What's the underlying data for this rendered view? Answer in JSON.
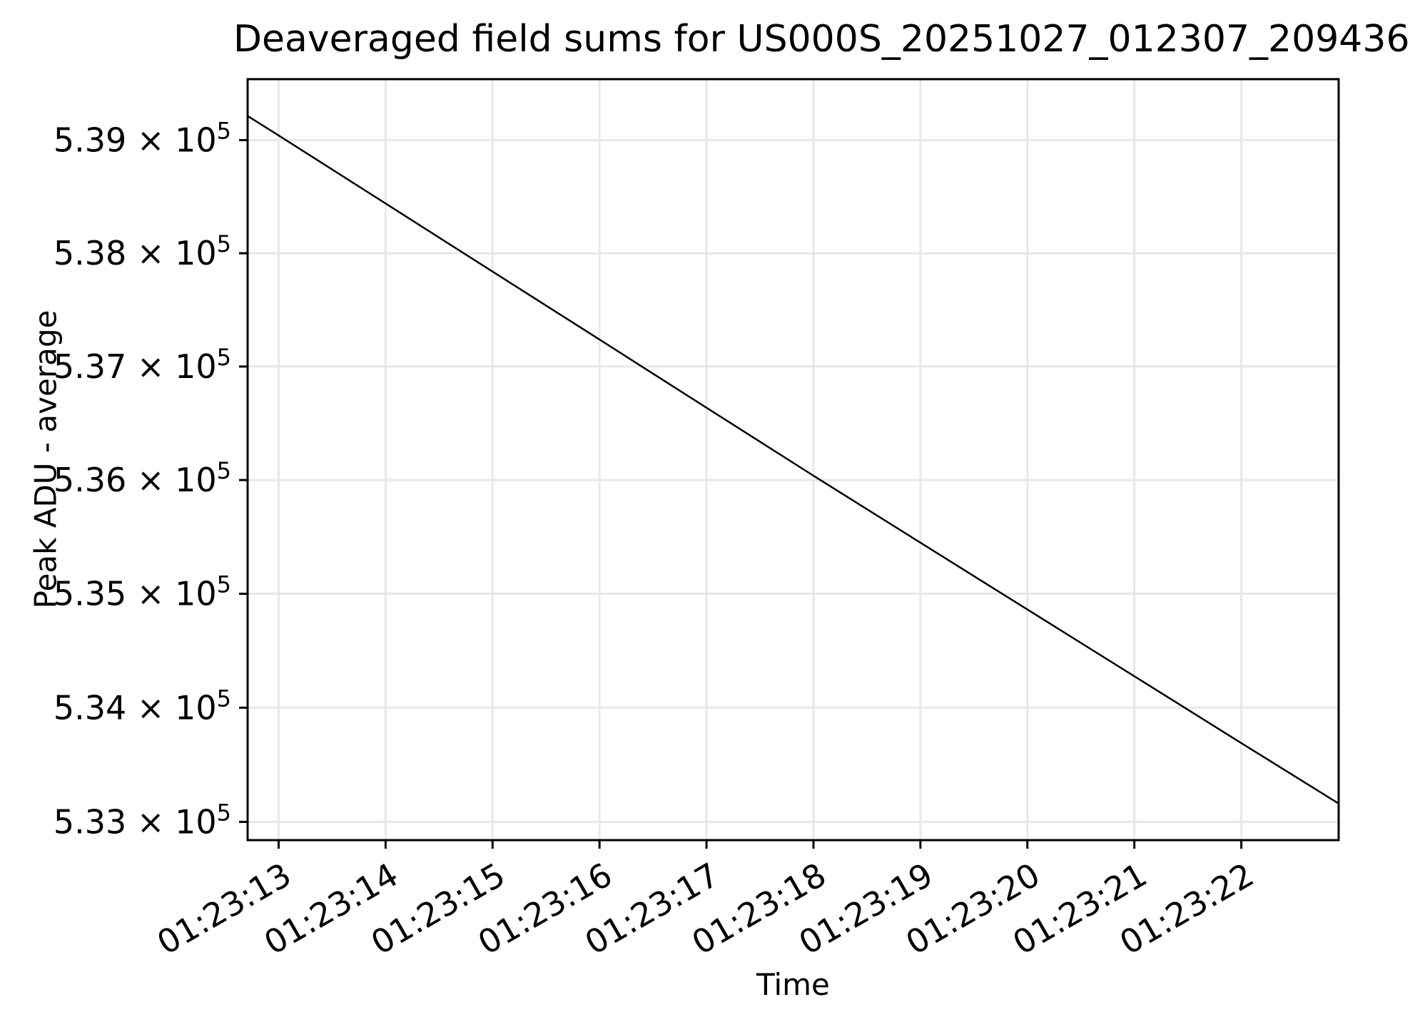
{
  "figure": {
    "background": "#ffffff",
    "text_color": "#000000"
  },
  "chart_data": {
    "type": "line",
    "title": "Deaveraged field sums for US000S_20251027_012307_209436",
    "xlabel": "Time",
    "ylabel": "Peak ADU - average",
    "grid": true,
    "legend": "none",
    "grid_color": "#e8e8e8",
    "axis_color": "#000000",
    "line_color": "#000000",
    "y_scale": "log",
    "y_range": [
      532840,
      539540
    ],
    "x_range_seconds": [
      12.71,
      22.91
    ],
    "x_ticks": [
      {
        "seconds": 13,
        "label": "01:23:13"
      },
      {
        "seconds": 14,
        "label": "01:23:14"
      },
      {
        "seconds": 15,
        "label": "01:23:15"
      },
      {
        "seconds": 16,
        "label": "01:23:16"
      },
      {
        "seconds": 17,
        "label": "01:23:17"
      },
      {
        "seconds": 18,
        "label": "01:23:18"
      },
      {
        "seconds": 19,
        "label": "01:23:19"
      },
      {
        "seconds": 20,
        "label": "01:23:20"
      },
      {
        "seconds": 21,
        "label": "01:23:21"
      },
      {
        "seconds": 22,
        "label": "01:23:22"
      }
    ],
    "y_ticks": [
      {
        "value": 539000,
        "label": "5.39 × 10^5"
      },
      {
        "value": 538000,
        "label": "5.38 × 10^5"
      },
      {
        "value": 537000,
        "label": "5.37 × 10^5"
      },
      {
        "value": 536000,
        "label": "5.36 × 10^5"
      },
      {
        "value": 535000,
        "label": "5.35 × 10^5"
      },
      {
        "value": 534000,
        "label": "5.34 × 10^5"
      },
      {
        "value": 533000,
        "label": "5.33 × 10^5"
      }
    ],
    "series": [
      {
        "name": "deaveraged field sum",
        "points": [
          [
            12.71,
            539214
          ],
          [
            13.0,
            539042
          ],
          [
            14.0,
            538440
          ],
          [
            15.0,
            537838
          ],
          [
            16.0,
            537238
          ],
          [
            17.0,
            536637
          ],
          [
            18.0,
            536038
          ],
          [
            19.0,
            535449
          ],
          [
            20.0,
            534862
          ],
          [
            21.0,
            534276
          ],
          [
            22.0,
            533690
          ],
          [
            22.91,
            533160
          ]
        ]
      }
    ]
  }
}
